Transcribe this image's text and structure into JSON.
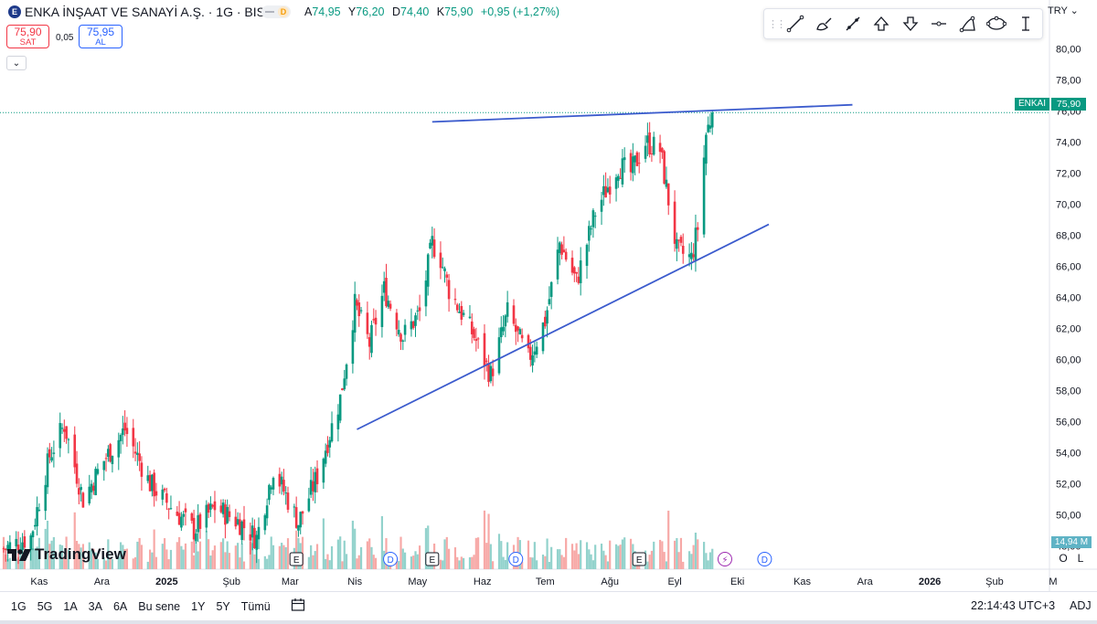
{
  "header": {
    "logo_letter": "E",
    "symbol_title": "ENKA İNŞAAT VE SANAYİ A.Ş. · 1G · BIST",
    "toggle_badge": "D",
    "ohlc": [
      {
        "label": "A",
        "value": "74,95"
      },
      {
        "label": "Y",
        "value": "76,20"
      },
      {
        "label": "D",
        "value": "74,40"
      },
      {
        "label": "K",
        "value": "75,90"
      }
    ],
    "change": "+0,95 (+1,27%)"
  },
  "trade": {
    "sell_price": "75,90",
    "sell_label": "SAT",
    "spread": "0,05",
    "buy_price": "75,95",
    "buy_label": "AL",
    "collapse_icon": "chevron-down-icon"
  },
  "drawing_toolbar": {
    "tools": [
      "trend-line-icon",
      "brush-icon",
      "ray-icon",
      "arrow-up-icon",
      "arrow-down-icon",
      "horizontal-ray-icon",
      "path-icon",
      "ellipse-icon",
      "text-cursor-icon"
    ]
  },
  "price_scale": {
    "currency": "TRY",
    "symbol_tag": "ENKAI",
    "last_price_tag": "75,90",
    "volume_tag": "14,94 M",
    "log_toggle": "L",
    "auto_toggle": "O"
  },
  "branding": {
    "name": "TradingView"
  },
  "colors": {
    "up": "#089981",
    "down": "#f23645",
    "vol_up": "#92d2cc",
    "vol_down": "#f7a9a7",
    "trendline": "#3b5bcd",
    "axis_text": "#131722"
  },
  "bottom_bar": {
    "ranges": [
      "1G",
      "5G",
      "1A",
      "3A",
      "6A",
      "Bu sene",
      "1Y",
      "5Y",
      "Tümü"
    ],
    "calendar_icon": "calendar-range-icon",
    "clock": "22:14:43 UTC+3",
    "adj": "ADJ"
  },
  "chart_data": {
    "type": "candlestick",
    "ylim": [
      46.5,
      81.5
    ],
    "y_ticks": [
      "80,00",
      "78,00",
      "76,00",
      "74,00",
      "72,00",
      "70,00",
      "68,00",
      "66,00",
      "64,00",
      "62,00",
      "60,00",
      "58,00",
      "56,00",
      "54,00",
      "52,00",
      "50,00",
      "48,00"
    ],
    "y_tick_values": [
      80,
      78,
      76,
      74,
      72,
      70,
      68,
      66,
      64,
      62,
      60,
      58,
      56,
      54,
      52,
      50,
      48
    ],
    "x_ticks": [
      {
        "label": "Kas",
        "date": "2024-11-01",
        "bold": false
      },
      {
        "label": "Ara",
        "date": "2024-12-01",
        "bold": false
      },
      {
        "label": "2025",
        "date": "2025-01-01",
        "bold": true
      },
      {
        "label": "Şub",
        "date": "2025-02-01",
        "bold": false
      },
      {
        "label": "Mar",
        "date": "2025-03-01",
        "bold": false
      },
      {
        "label": "Nis",
        "date": "2025-04-01",
        "bold": false
      },
      {
        "label": "May",
        "date": "2025-05-01",
        "bold": false
      },
      {
        "label": "Haz",
        "date": "2025-06-01",
        "bold": false
      },
      {
        "label": "Tem",
        "date": "2025-07-01",
        "bold": false
      },
      {
        "label": "Ağu",
        "date": "2025-08-01",
        "bold": false
      },
      {
        "label": "Eyl",
        "date": "2025-09-01",
        "bold": false
      },
      {
        "label": "Eki",
        "date": "2025-10-01",
        "bold": false
      },
      {
        "label": "Kas",
        "date": "2025-11-01",
        "bold": false
      },
      {
        "label": "Ara",
        "date": "2025-12-01",
        "bold": false
      },
      {
        "label": "2026",
        "date": "2026-01-01",
        "bold": true
      },
      {
        "label": "Şub",
        "date": "2026-02-01",
        "bold": false
      },
      {
        "label": "M",
        "date": "2026-03-01",
        "bold": false
      }
    ],
    "xlim": [
      "2024-10-15",
      "2026-03-01"
    ],
    "last_close": 75.9,
    "ohlc_anchors": [
      {
        "date": "2024-10-15",
        "close": 47.8
      },
      {
        "date": "2024-10-28",
        "close": 48.6
      },
      {
        "date": "2024-11-06",
        "close": 53.8
      },
      {
        "date": "2024-11-13",
        "close": 55.8
      },
      {
        "date": "2024-11-22",
        "close": 51.0
      },
      {
        "date": "2024-12-02",
        "close": 53.5
      },
      {
        "date": "2024-12-12",
        "close": 55.5
      },
      {
        "date": "2024-12-24",
        "close": 52.0
      },
      {
        "date": "2025-01-03",
        "close": 50.5
      },
      {
        "date": "2025-01-14",
        "close": 49.0
      },
      {
        "date": "2025-01-24",
        "close": 50.5
      },
      {
        "date": "2025-02-05",
        "close": 49.5
      },
      {
        "date": "2025-02-13",
        "close": 48.5
      },
      {
        "date": "2025-02-21",
        "close": 53.0
      },
      {
        "date": "2025-03-05",
        "close": 49.5
      },
      {
        "date": "2025-03-14",
        "close": 52.5
      },
      {
        "date": "2025-03-25",
        "close": 57.5
      },
      {
        "date": "2025-04-01",
        "close": 63.5
      },
      {
        "date": "2025-04-08",
        "close": 61.0
      },
      {
        "date": "2025-04-15",
        "close": 64.5
      },
      {
        "date": "2025-04-24",
        "close": 61.5
      },
      {
        "date": "2025-05-02",
        "close": 63.0
      },
      {
        "date": "2025-05-08",
        "close": 67.5
      },
      {
        "date": "2025-05-12",
        "close": 66.5
      },
      {
        "date": "2025-05-16",
        "close": 64.5
      },
      {
        "date": "2025-05-28",
        "close": 61.5
      },
      {
        "date": "2025-06-05",
        "close": 59.0
      },
      {
        "date": "2025-06-13",
        "close": 63.0
      },
      {
        "date": "2025-06-23",
        "close": 60.0
      },
      {
        "date": "2025-07-01",
        "close": 62.5
      },
      {
        "date": "2025-07-08",
        "close": 67.5
      },
      {
        "date": "2025-07-16",
        "close": 65.0
      },
      {
        "date": "2025-07-25",
        "close": 69.5
      },
      {
        "date": "2025-08-05",
        "close": 72.5
      },
      {
        "date": "2025-08-11",
        "close": 72.0
      },
      {
        "date": "2025-08-18",
        "close": 74.0
      },
      {
        "date": "2025-08-25",
        "close": 73.5
      },
      {
        "date": "2025-09-02",
        "close": 67.0
      },
      {
        "date": "2025-09-09",
        "close": 66.5
      },
      {
        "date": "2025-09-12",
        "close": 68.5
      },
      {
        "date": "2025-09-16",
        "close": 74.5
      },
      {
        "date": "2025-09-19",
        "close": 75.9
      }
    ],
    "trendlines": [
      {
        "name": "resistance",
        "from": {
          "date": "2025-05-08",
          "price": 75.3
        },
        "to": {
          "date": "2025-11-25",
          "price": 76.4
        }
      },
      {
        "name": "support",
        "from": {
          "date": "2025-04-02",
          "price": 55.5
        },
        "to": {
          "date": "2025-10-16",
          "price": 68.7
        }
      }
    ],
    "event_markers": [
      {
        "kind": "E",
        "date": "2025-03-04"
      },
      {
        "kind": "D",
        "date": "2025-04-18"
      },
      {
        "kind": "E",
        "date": "2025-05-08"
      },
      {
        "kind": "D",
        "date": "2025-06-17"
      },
      {
        "kind": "E",
        "date": "2025-08-15"
      },
      {
        "kind": "⚡",
        "date": "2025-09-25"
      },
      {
        "kind": "D",
        "date": "2025-10-14"
      }
    ]
  }
}
